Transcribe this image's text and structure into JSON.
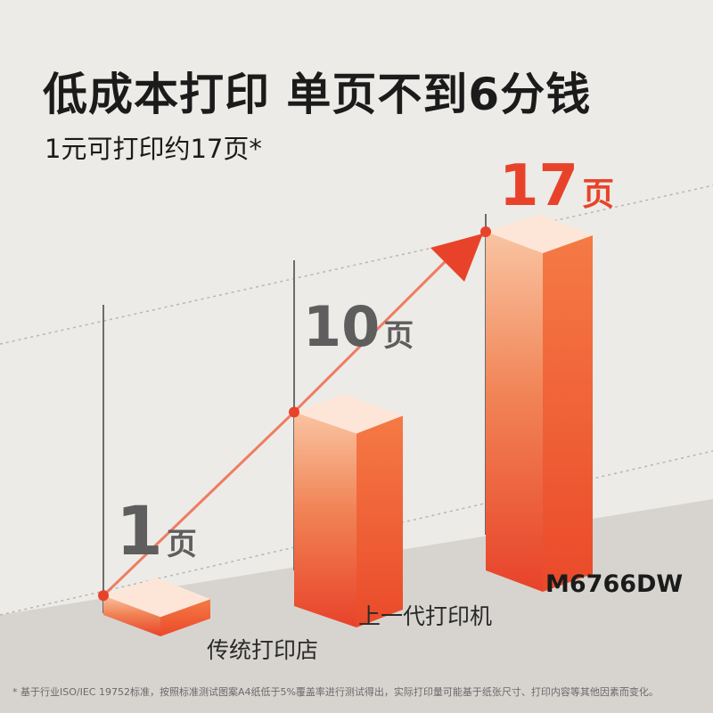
{
  "headline": "低成本打印 单页不到6分钱",
  "subline": "1元可打印约17页*",
  "footnote": "* 基于行业ISO/IEC 19752标准，按照标准测试图案A4纸低于5%覆盖率进行测试得出，实际打印量可能基于纸张尺寸、打印内容等其他因素而变化。",
  "chart_data": {
    "type": "bar",
    "categories": [
      "传统打印店",
      "上一代打印机",
      "M6766DW"
    ],
    "values": [
      1,
      10,
      17
    ],
    "value_labels": [
      {
        "number": "1",
        "unit": "页"
      },
      {
        "number": "10",
        "unit": "页"
      },
      {
        "number": "17",
        "unit": "页"
      }
    ],
    "title": "",
    "xlabel": "",
    "ylabel": "",
    "ylim": [
      0,
      17
    ],
    "grid": false,
    "legend": "none",
    "colors": {
      "bar_front_top": "#f6a06e",
      "bar_front_bottom": "#e8432a",
      "bar_side": "#ef5a30",
      "bar_top": "#fde6d8",
      "highlight": "#e8432a",
      "muted_label": "#5e5e5e",
      "arrow": "#ee6a4a"
    }
  }
}
